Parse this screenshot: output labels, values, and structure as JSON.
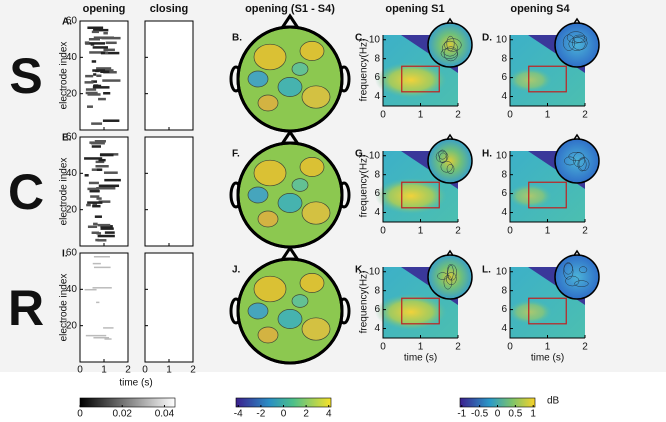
{
  "columns": [
    "opening",
    "closing",
    "opening (S1 - S4)",
    "opening S1",
    "opening S4"
  ],
  "rows": [
    {
      "letter": "S",
      "panels": [
        "A.",
        "B.",
        "C.",
        "D."
      ]
    },
    {
      "letter": "C",
      "panels": [
        "E.",
        "F.",
        "G.",
        "H."
      ]
    },
    {
      "letter": "R",
      "panels": [
        "I.",
        "J.",
        "K.",
        "L."
      ]
    }
  ],
  "raster": {
    "ylabel": "electrode index",
    "xlabel": "time (s)",
    "xlim": [
      0,
      2
    ],
    "xticks": [
      0,
      1,
      2
    ],
    "ylim": [
      0,
      60
    ],
    "yticks": [
      20,
      40,
      60
    ]
  },
  "spectrogram": {
    "ylabel": "frequency(Hz)",
    "xlabel": "time (s)",
    "xlim": [
      0,
      2
    ],
    "xticks": [
      0,
      1,
      2
    ],
    "ylim": [
      3,
      10.5
    ],
    "yticks": [
      4,
      6,
      8,
      10
    ]
  },
  "colorbars": [
    {
      "lim": [
        0,
        0.045
      ],
      "ticks": [
        0,
        0.02,
        0.04
      ]
    },
    {
      "lim": [
        -4.2,
        4.2
      ],
      "ticks": [
        -4,
        -2,
        0,
        2,
        4
      ]
    },
    {
      "unit": "dB",
      "lim": [
        -1.05,
        1.05
      ],
      "ticks": [
        -1,
        -0.5,
        0,
        0.5,
        1
      ]
    }
  ]
}
